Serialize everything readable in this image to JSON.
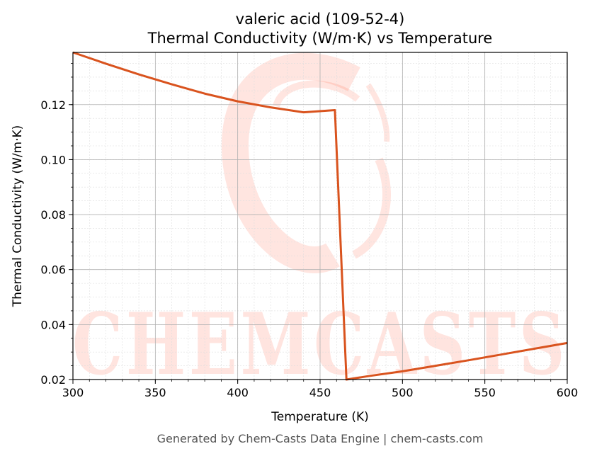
{
  "title_line1": "valeric acid (109-52-4)",
  "title_line2": "Thermal Conductivity (W/m·K) vs Temperature",
  "footer": "Generated by Chem-Casts Data Engine | chem-casts.com",
  "watermark_text": "CHEMCASTS",
  "colors": {
    "line": "#d9531e",
    "watermark": "#ff2a00",
    "grid_major": "#b0b0b0",
    "grid_minor": "#dddddd"
  },
  "chart_data": {
    "type": "line",
    "xlabel": "Temperature (K)",
    "ylabel": "Thermal Conductivity (W/m·K)",
    "xlim": [
      300,
      600
    ],
    "ylim": [
      0.02,
      0.139
    ],
    "xticks": [
      300,
      350,
      400,
      450,
      500,
      550,
      600
    ],
    "yticks": [
      0.02,
      0.04,
      0.06,
      0.08,
      0.1,
      0.12
    ],
    "ytick_labels": [
      "0.02",
      "0.04",
      "0.06",
      "0.08",
      "0.10",
      "0.12"
    ],
    "grid": true,
    "series": [
      {
        "x": [
          300,
          320,
          340,
          360,
          380,
          400,
          420,
          440,
          459,
          466,
          480,
          500,
          520,
          540,
          560,
          580,
          600
        ],
        "y": [
          0.139,
          0.1349,
          0.131,
          0.1274,
          0.124,
          0.1212,
          0.119,
          0.1172,
          0.118,
          0.02,
          0.0213,
          0.023,
          0.025,
          0.027,
          0.0291,
          0.0312,
          0.0333
        ]
      }
    ]
  }
}
